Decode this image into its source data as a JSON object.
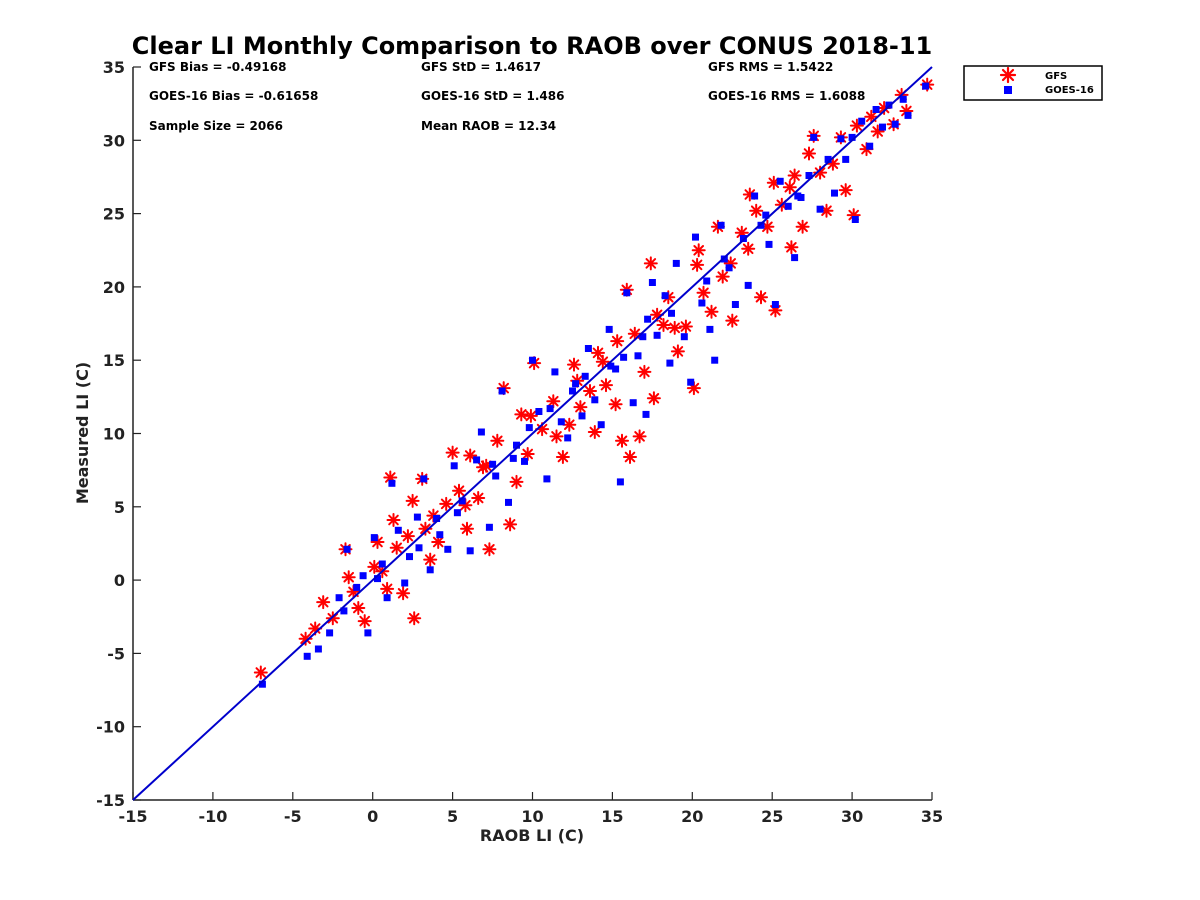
{
  "chart_data": {
    "type": "scatter",
    "title": "Clear LI Monthly Comparison to RAOB over CONUS 2018-11",
    "xlabel": "RAOB LI (C)",
    "ylabel": "Measured LI (C)",
    "xlim": [
      -15,
      35
    ],
    "ylim": [
      -15,
      35
    ],
    "xticks": [
      -15,
      -10,
      -5,
      0,
      5,
      10,
      15,
      20,
      25,
      30,
      35
    ],
    "yticks": [
      -15,
      -10,
      -5,
      0,
      5,
      10,
      15,
      20,
      25,
      30,
      35
    ],
    "reference_line": {
      "name": "1:1 line",
      "color": "#0000cc",
      "from": [
        -15,
        -15
      ],
      "to": [
        35,
        35
      ]
    },
    "legend": {
      "position": "outside top-right",
      "entries": [
        "GFS",
        "GOES-16"
      ]
    },
    "stats": {
      "gfs_bias": "GFS Bias = -0.49168",
      "goes_bias": "GOES-16 Bias = -0.61658",
      "sample_size": "Sample Size = 2066",
      "gfs_std": "GFS StD = 1.4617",
      "goes_std": "GOES-16 StD = 1.486",
      "mean_raob": "Mean RAOB = 12.34",
      "gfs_rms": "GFS RMS = 1.5422",
      "goes_rms": "GOES-16 RMS = 1.6088"
    },
    "series": [
      {
        "name": "GFS",
        "marker": "asterisk",
        "color": "#ff0000",
        "points": [
          [
            -7,
            -6.3
          ],
          [
            -4.2,
            -4
          ],
          [
            -3.6,
            -3.3
          ],
          [
            -3.1,
            -1.5
          ],
          [
            -2.5,
            -2.6
          ],
          [
            -1.7,
            2.1
          ],
          [
            -1.5,
            0.2
          ],
          [
            -1.2,
            -0.8
          ],
          [
            -0.9,
            -1.9
          ],
          [
            -0.5,
            -2.8
          ],
          [
            0.3,
            2.6
          ],
          [
            0.6,
            0.6
          ],
          [
            0.9,
            -0.6
          ],
          [
            1.1,
            7
          ],
          [
            1.3,
            4.1
          ],
          [
            1.5,
            2.2
          ],
          [
            1.9,
            -0.9
          ],
          [
            2.2,
            3
          ],
          [
            2.6,
            -2.6
          ],
          [
            2.5,
            5.4
          ],
          [
            3.1,
            6.9
          ],
          [
            3.3,
            3.5
          ],
          [
            3.6,
            1.4
          ],
          [
            4.1,
            2.6
          ],
          [
            4.6,
            5.2
          ],
          [
            5,
            8.7
          ],
          [
            5.4,
            6.1
          ],
          [
            5.9,
            3.5
          ],
          [
            6.1,
            8.5
          ],
          [
            6.6,
            5.6
          ],
          [
            7.1,
            7.8
          ],
          [
            7.3,
            2.1
          ],
          [
            7.8,
            9.5
          ],
          [
            8.2,
            13.1
          ],
          [
            8.6,
            3.8
          ],
          [
            9,
            6.7
          ],
          [
            9.3,
            11.3
          ],
          [
            9.7,
            8.6
          ],
          [
            10.1,
            14.8
          ],
          [
            10.6,
            10.3
          ],
          [
            11.3,
            12.2
          ],
          [
            11.9,
            8.4
          ],
          [
            12.3,
            10.6
          ],
          [
            12.6,
            14.7
          ],
          [
            13,
            11.8
          ],
          [
            13.6,
            12.9
          ],
          [
            13.9,
            10.1
          ],
          [
            14.1,
            15.5
          ],
          [
            14.6,
            13.3
          ],
          [
            15.2,
            12
          ],
          [
            15.9,
            19.8
          ],
          [
            15.6,
            9.5
          ],
          [
            16.1,
            8.4
          ],
          [
            16.4,
            16.8
          ],
          [
            16.7,
            9.8
          ],
          [
            17,
            14.2
          ],
          [
            17.4,
            21.6
          ],
          [
            17.6,
            12.4
          ],
          [
            18.2,
            17.4
          ],
          [
            18.5,
            19.3
          ],
          [
            19.1,
            15.6
          ],
          [
            19.6,
            17.3
          ],
          [
            20.1,
            13.1
          ],
          [
            20.4,
            22.5
          ],
          [
            20.7,
            19.6
          ],
          [
            21.2,
            18.3
          ],
          [
            21.6,
            24.1
          ],
          [
            21.9,
            20.7
          ],
          [
            22.5,
            17.7
          ],
          [
            23.1,
            23.7
          ],
          [
            23.5,
            22.6
          ],
          [
            23.6,
            26.3
          ],
          [
            24,
            25.2
          ],
          [
            24.3,
            19.3
          ],
          [
            24.7,
            24.1
          ],
          [
            25.1,
            27.1
          ],
          [
            25.2,
            18.4
          ],
          [
            25.6,
            25.6
          ],
          [
            26.2,
            22.7
          ],
          [
            26.4,
            27.6
          ],
          [
            26.9,
            24.1
          ],
          [
            27.3,
            29.1
          ],
          [
            27.6,
            30.3
          ],
          [
            28,
            27.8
          ],
          [
            28.4,
            25.2
          ],
          [
            28.8,
            28.4
          ],
          [
            29.3,
            30.2
          ],
          [
            29.6,
            26.6
          ],
          [
            30.1,
            24.9
          ],
          [
            30.3,
            31
          ],
          [
            30.9,
            29.4
          ],
          [
            31.2,
            31.6
          ],
          [
            31.6,
            30.6
          ],
          [
            32,
            32.2
          ],
          [
            32.6,
            31.1
          ],
          [
            33.1,
            33.1
          ],
          [
            33.4,
            32
          ],
          [
            34.7,
            33.8
          ],
          [
            12.8,
            13.6
          ],
          [
            9.9,
            11.2
          ],
          [
            14.4,
            14.9
          ],
          [
            17.8,
            18.1
          ],
          [
            6.9,
            7.7
          ],
          [
            22.4,
            21.6
          ],
          [
            11.5,
            9.8
          ],
          [
            20.3,
            21.5
          ],
          [
            15.3,
            16.3
          ],
          [
            5.8,
            5.1
          ],
          [
            26.1,
            26.8
          ],
          [
            3.8,
            4.4
          ],
          [
            0.1,
            0.9
          ],
          [
            18.9,
            17.2
          ]
        ]
      },
      {
        "name": "GOES-16",
        "marker": "square",
        "color": "#0000ff",
        "points": [
          [
            -6.9,
            -7.1
          ],
          [
            -4.1,
            -5.2
          ],
          [
            -3.4,
            -4.7
          ],
          [
            -2.7,
            -3.6
          ],
          [
            -2.1,
            -1.2
          ],
          [
            -1.6,
            2.1
          ],
          [
            -1,
            -0.5
          ],
          [
            -0.6,
            0.3
          ],
          [
            -0.3,
            -3.6
          ],
          [
            0.1,
            2.9
          ],
          [
            0.6,
            1.1
          ],
          [
            0.9,
            -1.2
          ],
          [
            1.2,
            6.6
          ],
          [
            1.6,
            3.4
          ],
          [
            2,
            -0.2
          ],
          [
            2.3,
            1.6
          ],
          [
            2.8,
            4.3
          ],
          [
            3.2,
            6.9
          ],
          [
            3.6,
            0.7
          ],
          [
            4.2,
            3.1
          ],
          [
            4.7,
            2.1
          ],
          [
            5.1,
            7.8
          ],
          [
            5.6,
            5.4
          ],
          [
            6.1,
            2
          ],
          [
            6.5,
            8.2
          ],
          [
            6.8,
            10.1
          ],
          [
            7.3,
            3.6
          ],
          [
            7.7,
            7.1
          ],
          [
            8.1,
            12.9
          ],
          [
            8.5,
            5.3
          ],
          [
            9,
            9.2
          ],
          [
            9.5,
            8.1
          ],
          [
            10,
            15
          ],
          [
            10.4,
            11.5
          ],
          [
            10.9,
            6.9
          ],
          [
            11.4,
            14.2
          ],
          [
            11.8,
            10.8
          ],
          [
            12.2,
            9.7
          ],
          [
            12.7,
            13.4
          ],
          [
            13.1,
            11.2
          ],
          [
            13.5,
            15.8
          ],
          [
            13.9,
            12.3
          ],
          [
            14.3,
            10.6
          ],
          [
            14.8,
            17.1
          ],
          [
            15.2,
            14.4
          ],
          [
            15.5,
            6.7
          ],
          [
            15.9,
            19.6
          ],
          [
            16.3,
            12.1
          ],
          [
            16.6,
            15.3
          ],
          [
            17.1,
            11.3
          ],
          [
            17.5,
            20.3
          ],
          [
            17.8,
            16.7
          ],
          [
            18.3,
            19.4
          ],
          [
            18.6,
            14.8
          ],
          [
            19,
            21.6
          ],
          [
            19.5,
            16.6
          ],
          [
            19.9,
            13.5
          ],
          [
            20.2,
            23.4
          ],
          [
            20.6,
            18.9
          ],
          [
            21.1,
            17.1
          ],
          [
            21.4,
            15
          ],
          [
            21.8,
            24.2
          ],
          [
            22.3,
            21.3
          ],
          [
            22.7,
            18.8
          ],
          [
            23.2,
            23.3
          ],
          [
            23.5,
            20.1
          ],
          [
            23.9,
            26.2
          ],
          [
            24.3,
            24.2
          ],
          [
            24.8,
            22.9
          ],
          [
            25.2,
            18.8
          ],
          [
            25.5,
            27.2
          ],
          [
            26,
            25.5
          ],
          [
            26.4,
            22
          ],
          [
            26.8,
            26.1
          ],
          [
            27.3,
            27.6
          ],
          [
            27.6,
            30.2
          ],
          [
            28,
            25.3
          ],
          [
            28.5,
            28.7
          ],
          [
            28.9,
            26.4
          ],
          [
            29.3,
            30.1
          ],
          [
            29.6,
            28.7
          ],
          [
            30,
            30.2
          ],
          [
            30.2,
            24.6
          ],
          [
            30.6,
            31.3
          ],
          [
            31.1,
            29.6
          ],
          [
            31.5,
            32.1
          ],
          [
            31.9,
            30.9
          ],
          [
            32.3,
            32.4
          ],
          [
            32.7,
            31.1
          ],
          [
            33.2,
            32.8
          ],
          [
            33.5,
            31.7
          ],
          [
            34.6,
            33.7
          ],
          [
            12.5,
            12.9
          ],
          [
            9.8,
            10.4
          ],
          [
            14.9,
            14.6
          ],
          [
            17.2,
            17.8
          ],
          [
            7.5,
            7.9
          ],
          [
            22,
            21.9
          ],
          [
            11.1,
            11.7
          ],
          [
            20.9,
            20.4
          ],
          [
            15.7,
            15.2
          ],
          [
            5.3,
            4.6
          ],
          [
            26.6,
            26.2
          ],
          [
            4,
            4.2
          ],
          [
            0.3,
            0.1
          ],
          [
            18.7,
            18.2
          ],
          [
            8.8,
            8.3
          ],
          [
            13.3,
            13.9
          ],
          [
            16.9,
            16.6
          ],
          [
            24.6,
            24.9
          ],
          [
            2.9,
            2.2
          ],
          [
            -1.8,
            -2.1
          ]
        ]
      }
    ]
  }
}
